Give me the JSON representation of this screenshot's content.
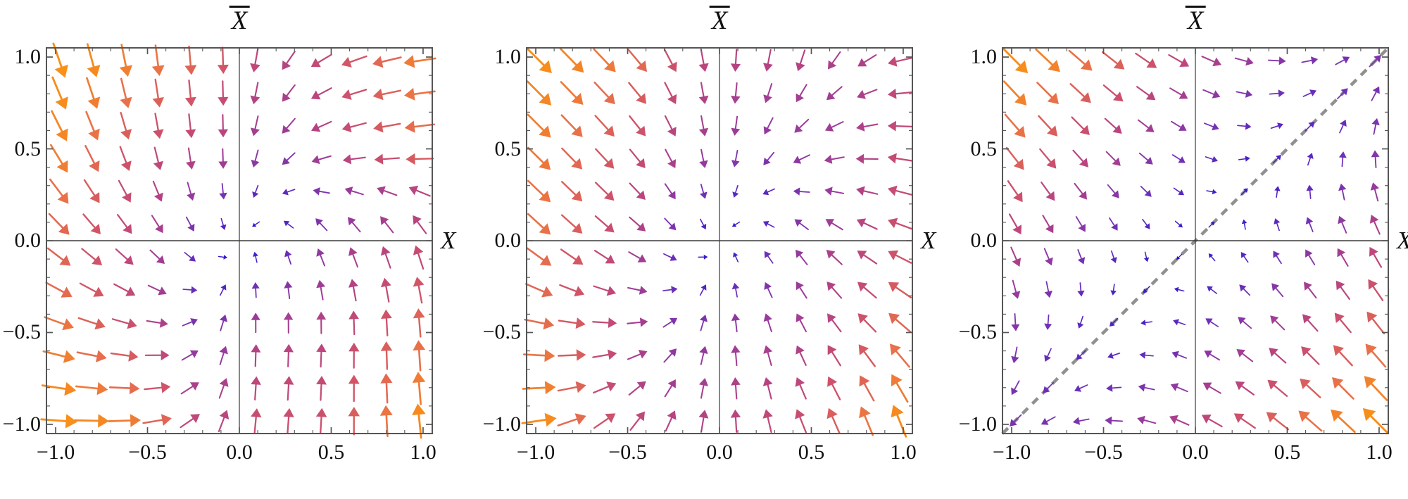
{
  "figure": {
    "background": "#ffffff",
    "description": "Three stream/vector-field plots of dynamics in the (X, X-bar) plane, arrows colored by magnitude (blue = small, orange = large)."
  },
  "axes": {
    "x_label": "X",
    "y_label_text": "X",
    "y_label_overbar": true,
    "x_tick_labels": [
      "−1.0",
      "−0.5",
      "0.0",
      "0.5",
      "1.0"
    ],
    "y_tick_labels": [
      "1.0",
      "0.5",
      "0.0",
      "−0.5",
      "−1.0"
    ],
    "x_range": [
      -1.05,
      1.05
    ],
    "y_range": [
      -1.05,
      1.05
    ],
    "major_tick_step": 0.5,
    "minor_tick_step": 0.1
  },
  "colormap": {
    "stops": [
      "#2512D0",
      "#4520C8",
      "#6C2FB8",
      "#94399E",
      "#B84480",
      "#D05468",
      "#E8704A",
      "#F68A1E",
      "#FB9613"
    ],
    "positions": [
      0,
      0.12,
      0.25,
      0.38,
      0.5,
      0.62,
      0.75,
      0.88,
      1.0
    ]
  },
  "chart_data": [
    {
      "type": "vector_field",
      "title": {
        "text": "X",
        "overbar": true
      },
      "xlabel": "X",
      "xlim": [
        -1.05,
        1.05
      ],
      "ylim": [
        -1.05,
        1.05
      ],
      "arrow_grid": 12,
      "diagonal_line": false,
      "sample_x": [
        -1,
        -0.5,
        0,
        0.5,
        1
      ],
      "sample_y_top_to_bottom": [
        1,
        0.5,
        0,
        -0.5,
        -1
      ],
      "angles_deg": [
        [
          289,
          278,
          270,
          205,
          188
        ],
        [
          300,
          283,
          268,
          196,
          186
        ],
        [
          318,
          308,
          270,
          118,
          112
        ],
        [
          342,
          350,
          90,
          88,
          93
        ],
        [
          356,
          5,
          84,
          87,
          96
        ]
      ],
      "magnitudes": [
        [
          0.95,
          0.8,
          0.6,
          0.58,
          0.82
        ],
        [
          0.85,
          0.56,
          0.44,
          0.5,
          0.72
        ],
        [
          0.7,
          0.48,
          0.02,
          0.4,
          0.55
        ],
        [
          0.8,
          0.55,
          0.44,
          0.5,
          0.72
        ],
        [
          0.95,
          0.78,
          0.58,
          0.6,
          0.9
        ]
      ]
    },
    {
      "type": "vector_field",
      "title": {
        "text": "X",
        "overbar": true
      },
      "xlabel": "X",
      "xlim": [
        -1.05,
        1.05
      ],
      "ylim": [
        -1.05,
        1.05
      ],
      "arrow_grid": 12,
      "diagonal_line": false,
      "sample_x": [
        -1,
        -0.5,
        0,
        0.5,
        1
      ],
      "sample_y_top_to_bottom": [
        1,
        0.5,
        0,
        -0.5,
        -1
      ],
      "angles_deg": [
        [
          315,
          313,
          270,
          251,
          192
        ],
        [
          315,
          311,
          271,
          206,
          172
        ],
        [
          318,
          322,
          270,
          131,
          158
        ],
        [
          352,
          5,
          90,
          119,
          138
        ],
        [
          8,
          50,
          88,
          114,
          111
        ]
      ],
      "magnitudes": [
        [
          0.92,
          0.76,
          0.5,
          0.5,
          0.56
        ],
        [
          0.8,
          0.6,
          0.4,
          0.42,
          0.56
        ],
        [
          0.76,
          0.5,
          0.02,
          0.42,
          0.6
        ],
        [
          0.76,
          0.5,
          0.4,
          0.45,
          0.74
        ],
        [
          0.92,
          0.56,
          0.5,
          0.6,
          0.9
        ]
      ]
    },
    {
      "type": "vector_field",
      "title": {
        "text": "X",
        "overbar": true
      },
      "xlabel": "X",
      "xlim": [
        -1.05,
        1.05
      ],
      "ylim": [
        -1.05,
        1.05
      ],
      "arrow_grid": 12,
      "diagonal_line": true,
      "diagonal_from": [
        -1.05,
        -1.05
      ],
      "diagonal_to": [
        1.05,
        1.05
      ],
      "diagonal_color": "#909090",
      "sample_x": [
        -1,
        -0.5,
        0,
        0.5,
        1
      ],
      "sample_y_top_to_bottom": [
        1,
        0.5,
        0,
        -0.5,
        -1
      ],
      "angles_deg": [
        [
          315,
          321,
          333,
          0,
          45
        ],
        [
          309,
          315,
          333,
          45,
          90
        ],
        [
          297,
          297,
          45,
          117,
          117
        ],
        [
          270,
          225,
          153,
          135,
          129
        ],
        [
          225,
          180,
          153,
          141,
          135
        ]
      ],
      "magnitudes": [
        [
          0.94,
          0.71,
          0.5,
          0.33,
          0.31
        ],
        [
          0.71,
          0.47,
          0.25,
          0.16,
          0.33
        ],
        [
          0.5,
          0.25,
          0.01,
          0.25,
          0.5
        ],
        [
          0.33,
          0.16,
          0.25,
          0.47,
          0.71
        ],
        [
          0.31,
          0.33,
          0.5,
          0.71,
          0.94
        ]
      ]
    }
  ],
  "style": {
    "frame_color": "#555555",
    "axis_color": "#3a3a3a",
    "tick_color": "#555555"
  }
}
